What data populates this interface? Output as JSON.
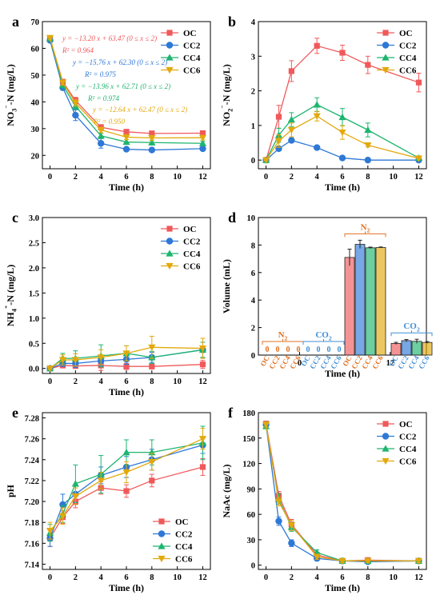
{
  "series_colors": {
    "OC": "#f0595b",
    "CC2": "#2e78d6",
    "CC4": "#1db56f",
    "CC6": "#e2a90d"
  },
  "n2_color": "#e07020",
  "co2_color": "#3f8fd6",
  "chart_data": [
    {
      "panel": "a",
      "type": "line",
      "xlabel": "Time (h)",
      "ylabel": "NO3⁻-N (mg/L)",
      "ylabel_parts": [
        {
          "t": "NO"
        },
        {
          "t": "3",
          "sub": true
        },
        {
          "t": "⁻",
          "sup": true
        },
        {
          "t": "-N (mg/L)"
        }
      ],
      "xlim": [
        -0.6,
        12.6
      ],
      "ylim": [
        15,
        70
      ],
      "xticks": [
        0,
        2,
        4,
        6,
        8,
        10,
        12
      ],
      "yticks": [
        20,
        30,
        40,
        50,
        60,
        70
      ],
      "x": [
        0,
        1,
        2,
        4,
        6,
        8,
        12
      ],
      "legend": "top-right",
      "series": [
        {
          "name": "OC",
          "values": [
            63.8,
            47.5,
            40.5,
            30.5,
            28.8,
            28.2,
            28.3
          ],
          "err": [
            0.5,
            0.9,
            1.2,
            1.0,
            0.9,
            0.9,
            0.8
          ]
        },
        {
          "name": "CC2",
          "values": [
            63.0,
            45.3,
            35.0,
            24.5,
            22.3,
            22.0,
            22.5
          ],
          "err": [
            0.5,
            0.9,
            2.0,
            1.8,
            0.7,
            0.7,
            0.6
          ]
        },
        {
          "name": "CC4",
          "values": [
            63.7,
            46.2,
            38.4,
            27.3,
            25.0,
            24.8,
            24.5
          ],
          "err": [
            0.5,
            0.9,
            1.2,
            1.0,
            0.9,
            0.9,
            0.8
          ]
        },
        {
          "name": "CC6",
          "values": [
            63.9,
            47.2,
            39.6,
            29.5,
            26.8,
            26.5,
            26.6
          ],
          "err": [
            0.5,
            0.9,
            1.2,
            1.0,
            0.9,
            0.9,
            0.8
          ]
        }
      ],
      "annotations": [
        {
          "series": "OC",
          "eq": "y = −13.20 x + 63.47 (0 ≤ x ≤ 2)",
          "r2": "R² = 0.964"
        },
        {
          "series": "CC2",
          "eq": "y = −15.76 x + 62.30 (0 ≤ x ≤ 2)",
          "r2": "R² = 0.975"
        },
        {
          "series": "CC4",
          "eq": "y = −13.96 x + 62.71 (0 ≤ x ≤ 2)",
          "r2": "R² = 0.974"
        },
        {
          "series": "CC6",
          "eq": "y = −12.64 x + 62.47 (0 ≤ x ≤ 2)",
          "r2": "R² = 0.950"
        }
      ]
    },
    {
      "panel": "b",
      "type": "line",
      "xlabel": "Time (h)",
      "ylabel": "NO2⁻-N (mg/L)",
      "ylabel_parts": [
        {
          "t": "NO"
        },
        {
          "t": "2",
          "sub": true
        },
        {
          "t": "⁻",
          "sup": true
        },
        {
          "t": "-N (mg/L)"
        }
      ],
      "xlim": [
        -0.6,
        12.6
      ],
      "ylim": [
        -0.25,
        4
      ],
      "xticks": [
        0,
        2,
        4,
        6,
        8,
        10,
        12
      ],
      "yticks": [
        0,
        1,
        2,
        3,
        4
      ],
      "x": [
        0,
        1,
        2,
        4,
        6,
        8,
        12
      ],
      "legend": "top-right",
      "series": [
        {
          "name": "OC",
          "values": [
            0,
            1.25,
            2.57,
            3.3,
            3.1,
            2.75,
            2.24
          ],
          "err": [
            0.02,
            0.33,
            0.3,
            0.22,
            0.22,
            0.25,
            0.27
          ]
        },
        {
          "name": "CC2",
          "values": [
            0,
            0.33,
            0.57,
            0.36,
            0.06,
            0.0,
            0.0
          ],
          "err": [
            0.02,
            0.05,
            0.06,
            0.04,
            0.02,
            0.02,
            0.02
          ]
        },
        {
          "name": "CC4",
          "values": [
            0,
            0.72,
            1.17,
            1.6,
            1.24,
            0.87,
            0.06
          ],
          "err": [
            0.02,
            0.2,
            0.2,
            0.2,
            0.25,
            0.2,
            0.03
          ]
        },
        {
          "name": "CC6",
          "values": [
            0,
            0.55,
            0.87,
            1.27,
            0.8,
            0.43,
            0.05
          ],
          "err": [
            0.02,
            0.18,
            0.2,
            0.14,
            0.2,
            0.05,
            0.02
          ]
        }
      ]
    },
    {
      "panel": "c",
      "type": "line",
      "xlabel": "Time (h)",
      "ylabel": "NH4⁺-N (mg/L)",
      "ylabel_parts": [
        {
          "t": "NH"
        },
        {
          "t": "4",
          "sub": true
        },
        {
          "t": "⁺",
          "sup": true
        },
        {
          "t": "-N (mg/L)"
        }
      ],
      "xlim": [
        -0.6,
        12.6
      ],
      "ylim": [
        -0.1,
        3.0
      ],
      "xticks": [
        0,
        2,
        4,
        6,
        8,
        10,
        12
      ],
      "yticks": [
        0.0,
        0.5,
        1.0,
        1.5,
        2.0,
        2.5,
        3.0
      ],
      "x": [
        0,
        1,
        2,
        4,
        6,
        8,
        12
      ],
      "legend": "top-right",
      "series": [
        {
          "name": "OC",
          "values": [
            0,
            0.06,
            0.05,
            0.06,
            0.04,
            0.04,
            0.08
          ],
          "err": [
            0.02,
            0.05,
            0.05,
            0.1,
            0.06,
            0.05,
            0.08
          ]
        },
        {
          "name": "CC2",
          "values": [
            0,
            0.1,
            0.1,
            0.15,
            0.18,
            0.22,
            0.37
          ],
          "err": [
            0.02,
            0.06,
            0.08,
            0.1,
            0.1,
            0.1,
            0.15
          ]
        },
        {
          "name": "CC4",
          "values": [
            0,
            0.2,
            0.2,
            0.25,
            0.3,
            0.22,
            0.37
          ],
          "err": [
            0.02,
            0.1,
            0.15,
            0.22,
            0.15,
            0.12,
            0.15
          ]
        },
        {
          "name": "CC6",
          "values": [
            0,
            0.17,
            0.17,
            0.22,
            0.3,
            0.42,
            0.4
          ],
          "err": [
            0.02,
            0.1,
            0.12,
            0.15,
            0.15,
            0.22,
            0.2
          ]
        }
      ]
    },
    {
      "panel": "d",
      "type": "bar",
      "xlabel": "Time (h)",
      "ylabel": "Volume (mL)",
      "ylabel_parts": [
        {
          "t": "Volume (mL)"
        }
      ],
      "ylim": [
        0,
        10
      ],
      "yticks": [
        0,
        2,
        4,
        6,
        8,
        10
      ],
      "group_ticks": [
        "0",
        "12"
      ],
      "categories": [
        "OC",
        "CC2",
        "CC4",
        "CC6"
      ],
      "groups": [
        {
          "time": "0",
          "gas": "N2",
          "gas_parts": [
            {
              "t": "N"
            },
            {
              "t": "2",
              "sub": true
            }
          ],
          "values": [
            0,
            0,
            0,
            0
          ],
          "err": [
            0,
            0,
            0,
            0
          ],
          "zero_labels": [
            "0",
            "0",
            "0",
            "0"
          ]
        },
        {
          "time": "0",
          "gas": "CO2",
          "gas_parts": [
            {
              "t": "CO"
            },
            {
              "t": "2",
              "sub": true
            }
          ],
          "values": [
            0,
            0,
            0,
            0
          ],
          "err": [
            0,
            0,
            0,
            0
          ],
          "zero_labels": [
            "0",
            "0",
            "0",
            "0"
          ]
        },
        {
          "time": "12",
          "gas": "N2",
          "gas_parts": [
            {
              "t": "N"
            },
            {
              "t": "2",
              "sub": true
            }
          ],
          "values": [
            7.1,
            8.05,
            7.8,
            7.82
          ],
          "err": [
            0.6,
            0.3,
            0.05,
            0.04
          ],
          "zero_labels": []
        },
        {
          "time": "12",
          "gas": "CO2",
          "gas_parts": [
            {
              "t": "CO"
            },
            {
              "t": "2",
              "sub": true
            }
          ],
          "values": [
            0.85,
            1.05,
            1.0,
            0.92
          ],
          "err": [
            0.08,
            0.08,
            0.15,
            0.06
          ],
          "zero_labels": []
        }
      ]
    },
    {
      "panel": "e",
      "type": "line",
      "xlabel": "Time (h)",
      "ylabel": "pH",
      "ylabel_parts": [
        {
          "t": "pH"
        }
      ],
      "xlim": [
        -0.6,
        12.6
      ],
      "ylim": [
        7.135,
        7.285
      ],
      "xticks": [
        0,
        2,
        4,
        6,
        8,
        10,
        12
      ],
      "yticks": [
        7.14,
        7.16,
        7.18,
        7.2,
        7.22,
        7.24,
        7.26,
        7.28
      ],
      "x": [
        0,
        1,
        2,
        4,
        6,
        8,
        12
      ],
      "legend": "bottom-right",
      "series": [
        {
          "name": "OC",
          "values": [
            7.165,
            7.185,
            7.2,
            7.213,
            7.21,
            7.22,
            7.233
          ],
          "err": [
            0.008,
            0.006,
            0.006,
            0.006,
            0.006,
            0.006,
            0.008
          ]
        },
        {
          "name": "CC2",
          "values": [
            7.165,
            7.197,
            7.207,
            7.225,
            7.233,
            7.24,
            7.254
          ],
          "err": [
            0.008,
            0.01,
            0.008,
            0.008,
            0.01,
            0.01,
            0.008
          ]
        },
        {
          "name": "CC4",
          "values": [
            7.17,
            7.188,
            7.217,
            7.226,
            7.247,
            7.247,
            7.256
          ],
          "err": [
            0.008,
            0.008,
            0.018,
            0.018,
            0.012,
            0.012,
            0.016
          ]
        },
        {
          "name": "CC6",
          "values": [
            7.172,
            7.186,
            7.205,
            7.22,
            7.228,
            7.238,
            7.26
          ],
          "err": [
            0.008,
            0.008,
            0.008,
            0.008,
            0.01,
            0.008,
            0.01
          ]
        }
      ]
    },
    {
      "panel": "f",
      "type": "line",
      "xlabel": "Time (h)",
      "ylabel": "NaAc (mg/L)",
      "ylabel_parts": [
        {
          "t": "NaAc (mg/L)"
        }
      ],
      "xlim": [
        -0.6,
        12.6
      ],
      "ylim": [
        -5,
        180
      ],
      "xticks": [
        0,
        2,
        4,
        6,
        8,
        10,
        12
      ],
      "yticks": [
        0,
        30,
        60,
        90,
        120,
        150,
        180
      ],
      "x": [
        0,
        1,
        2,
        4,
        6,
        8,
        12
      ],
      "legend": "top-right",
      "series": [
        {
          "name": "OC",
          "values": [
            167,
            82,
            48,
            12,
            5,
            6,
            5
          ],
          "err": [
            3,
            5,
            6,
            3,
            2,
            2,
            2
          ]
        },
        {
          "name": "CC2",
          "values": [
            166,
            52,
            26,
            8,
            5,
            4,
            5
          ],
          "err": [
            3,
            5,
            4,
            2,
            2,
            2,
            2
          ]
        },
        {
          "name": "CC4",
          "values": [
            164,
            78,
            45,
            15,
            5,
            5,
            5
          ],
          "err": [
            3,
            6,
            5,
            3,
            2,
            2,
            2
          ]
        },
        {
          "name": "CC6",
          "values": [
            166,
            75,
            47,
            10,
            5,
            5,
            5
          ],
          "err": [
            3,
            5,
            6,
            3,
            2,
            2,
            2
          ]
        }
      ]
    }
  ]
}
